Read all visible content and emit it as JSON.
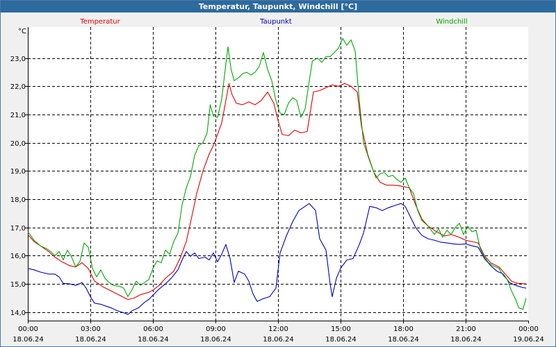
{
  "window": {
    "title": "Temperatur, Taupunkt, Windchill [°C]"
  },
  "chart_data": {
    "type": "line",
    "title": "Temperatur, Taupunkt, Windchill [°C]",
    "ylabel": "°C",
    "xlabel": "",
    "ylim": [
      13.7,
      24.1
    ],
    "xlim": [
      0,
      24
    ],
    "grid": true,
    "yticks": [
      14.0,
      15.0,
      16.0,
      17.0,
      18.0,
      19.0,
      20.0,
      21.0,
      22.0,
      23.0
    ],
    "ytick_labels": [
      "14,0",
      "15,0",
      "16,0",
      "17,0",
      "18,0",
      "19,0",
      "20,0",
      "21,0",
      "22,0",
      "23,0"
    ],
    "xticks": [
      {
        "x": 0,
        "time": "00:00",
        "date": "18.06.24"
      },
      {
        "x": 3,
        "time": "03:00",
        "date": "18.06.24"
      },
      {
        "x": 6,
        "time": "06:00",
        "date": "18.06.24"
      },
      {
        "x": 9,
        "time": "09:00",
        "date": "18.06.24"
      },
      {
        "x": 12,
        "time": "12:00",
        "date": "18.06.24"
      },
      {
        "x": 15,
        "time": "15:00",
        "date": "18.06.24"
      },
      {
        "x": 18,
        "time": "18:00",
        "date": "18.06.24"
      },
      {
        "x": 21,
        "time": "21:00",
        "date": "18.06.24"
      },
      {
        "x": 24,
        "time": "00:00",
        "date": "19.06.24"
      }
    ],
    "legend_position": "top",
    "series": [
      {
        "name": "Temperatur",
        "color": "#e00000",
        "points": [
          [
            0,
            16.75
          ],
          [
            0.3,
            16.5
          ],
          [
            0.7,
            16.3
          ],
          [
            1.0,
            16.15
          ],
          [
            1.3,
            15.95
          ],
          [
            1.6,
            15.8
          ],
          [
            2.0,
            15.65
          ],
          [
            2.3,
            15.6
          ],
          [
            2.6,
            15.75
          ],
          [
            2.9,
            15.55
          ],
          [
            3.2,
            15.1
          ],
          [
            3.6,
            14.9
          ],
          [
            4.0,
            14.75
          ],
          [
            4.4,
            14.6
          ],
          [
            4.8,
            14.45
          ],
          [
            5.1,
            14.5
          ],
          [
            5.4,
            14.62
          ],
          [
            5.8,
            14.7
          ],
          [
            6.0,
            14.78
          ],
          [
            6.3,
            14.95
          ],
          [
            6.6,
            15.2
          ],
          [
            7.0,
            15.45
          ],
          [
            7.3,
            15.9
          ],
          [
            7.6,
            16.5
          ],
          [
            7.9,
            17.5
          ],
          [
            8.1,
            18.2
          ],
          [
            8.4,
            19.0
          ],
          [
            8.7,
            19.6
          ],
          [
            8.9,
            19.9
          ],
          [
            9.1,
            20.3
          ],
          [
            9.3,
            20.7
          ],
          [
            9.5,
            21.5
          ],
          [
            9.65,
            22.1
          ],
          [
            9.8,
            21.7
          ],
          [
            10.0,
            21.4
          ],
          [
            10.3,
            21.35
          ],
          [
            10.6,
            21.45
          ],
          [
            10.9,
            21.35
          ],
          [
            11.2,
            21.5
          ],
          [
            11.5,
            21.8
          ],
          [
            11.8,
            21.4
          ],
          [
            12.0,
            20.8
          ],
          [
            12.2,
            20.3
          ],
          [
            12.5,
            20.25
          ],
          [
            12.8,
            20.45
          ],
          [
            13.1,
            20.35
          ],
          [
            13.4,
            20.4
          ],
          [
            13.7,
            21.8
          ],
          [
            14.0,
            21.85
          ],
          [
            14.3,
            21.95
          ],
          [
            14.6,
            22.05
          ],
          [
            14.9,
            22.0
          ],
          [
            15.2,
            22.1
          ],
          [
            15.5,
            22.0
          ],
          [
            15.8,
            21.8
          ],
          [
            16.0,
            20.6
          ],
          [
            16.3,
            19.6
          ],
          [
            16.6,
            18.95
          ],
          [
            16.9,
            18.6
          ],
          [
            17.2,
            18.5
          ],
          [
            17.5,
            18.5
          ],
          [
            17.8,
            18.48
          ],
          [
            18.0,
            18.45
          ],
          [
            18.3,
            18.4
          ],
          [
            18.6,
            17.8
          ],
          [
            18.9,
            17.3
          ],
          [
            19.2,
            17.05
          ],
          [
            19.6,
            16.85
          ],
          [
            20.0,
            16.7
          ],
          [
            20.3,
            16.75
          ],
          [
            20.6,
            16.68
          ],
          [
            21.0,
            16.55
          ],
          [
            21.3,
            16.5
          ],
          [
            21.6,
            16.45
          ],
          [
            21.9,
            16.0
          ],
          [
            22.2,
            15.75
          ],
          [
            22.6,
            15.6
          ],
          [
            22.9,
            15.35
          ],
          [
            23.2,
            15.1
          ],
          [
            23.5,
            15.02
          ],
          [
            23.9,
            15.0
          ]
        ]
      },
      {
        "name": "Taupunkt",
        "color": "#0000c0",
        "points": [
          [
            0,
            15.55
          ],
          [
            0.3,
            15.5
          ],
          [
            0.6,
            15.42
          ],
          [
            1.0,
            15.35
          ],
          [
            1.3,
            15.35
          ],
          [
            1.5,
            15.25
          ],
          [
            1.7,
            15.02
          ],
          [
            2.0,
            15.0
          ],
          [
            2.3,
            14.95
          ],
          [
            2.6,
            15.05
          ],
          [
            2.8,
            14.85
          ],
          [
            3.0,
            14.55
          ],
          [
            3.2,
            14.32
          ],
          [
            3.5,
            14.28
          ],
          [
            3.8,
            14.2
          ],
          [
            4.0,
            14.15
          ],
          [
            4.3,
            14.05
          ],
          [
            4.6,
            13.98
          ],
          [
            4.8,
            13.92
          ],
          [
            5.0,
            14.05
          ],
          [
            5.3,
            14.15
          ],
          [
            5.6,
            14.35
          ],
          [
            5.8,
            14.45
          ],
          [
            6.0,
            14.6
          ],
          [
            6.3,
            14.82
          ],
          [
            6.6,
            15.0
          ],
          [
            6.9,
            15.22
          ],
          [
            7.2,
            15.5
          ],
          [
            7.4,
            15.85
          ],
          [
            7.6,
            16.15
          ],
          [
            7.8,
            15.98
          ],
          [
            8.0,
            16.1
          ],
          [
            8.2,
            15.9
          ],
          [
            8.5,
            15.95
          ],
          [
            8.7,
            15.85
          ],
          [
            8.9,
            16.1
          ],
          [
            9.1,
            15.78
          ],
          [
            9.3,
            16.05
          ],
          [
            9.5,
            16.4
          ],
          [
            9.7,
            15.9
          ],
          [
            9.9,
            15.05
          ],
          [
            10.1,
            15.45
          ],
          [
            10.4,
            15.35
          ],
          [
            10.6,
            15.1
          ],
          [
            10.8,
            14.65
          ],
          [
            11.0,
            14.38
          ],
          [
            11.3,
            14.48
          ],
          [
            11.6,
            14.55
          ],
          [
            11.9,
            14.85
          ],
          [
            12.1,
            16.1
          ],
          [
            12.4,
            16.7
          ],
          [
            12.7,
            17.2
          ],
          [
            13.0,
            17.6
          ],
          [
            13.2,
            17.7
          ],
          [
            13.5,
            17.85
          ],
          [
            13.8,
            17.6
          ],
          [
            14.0,
            16.6
          ],
          [
            14.3,
            16.2
          ],
          [
            14.5,
            15.0
          ],
          [
            14.6,
            14.55
          ],
          [
            14.8,
            15.2
          ],
          [
            15.0,
            15.55
          ],
          [
            15.3,
            15.85
          ],
          [
            15.6,
            15.9
          ],
          [
            15.9,
            16.4
          ],
          [
            16.1,
            16.8
          ],
          [
            16.4,
            17.75
          ],
          [
            16.7,
            17.7
          ],
          [
            17.0,
            17.6
          ],
          [
            17.3,
            17.7
          ],
          [
            17.6,
            17.78
          ],
          [
            17.9,
            17.85
          ],
          [
            18.1,
            17.75
          ],
          [
            18.3,
            17.45
          ],
          [
            18.6,
            17.0
          ],
          [
            18.9,
            16.72
          ],
          [
            19.2,
            16.6
          ],
          [
            19.5,
            16.55
          ],
          [
            19.8,
            16.48
          ],
          [
            20.1,
            16.45
          ],
          [
            20.4,
            16.42
          ],
          [
            20.7,
            16.4
          ],
          [
            21.0,
            16.42
          ],
          [
            21.3,
            16.35
          ],
          [
            21.6,
            16.3
          ],
          [
            21.9,
            15.9
          ],
          [
            22.2,
            15.65
          ],
          [
            22.5,
            15.45
          ],
          [
            22.8,
            15.35
          ],
          [
            23.1,
            15.05
          ],
          [
            23.4,
            14.95
          ],
          [
            23.7,
            14.88
          ],
          [
            23.9,
            14.85
          ]
        ]
      },
      {
        "name": "Windchill",
        "color": "#00a800",
        "points": [
          [
            0,
            16.85
          ],
          [
            0.3,
            16.55
          ],
          [
            0.6,
            16.35
          ],
          [
            0.9,
            16.25
          ],
          [
            1.1,
            16.15
          ],
          [
            1.3,
            16.0
          ],
          [
            1.5,
            16.15
          ],
          [
            1.7,
            15.85
          ],
          [
            1.9,
            16.2
          ],
          [
            2.1,
            15.95
          ],
          [
            2.3,
            15.6
          ],
          [
            2.5,
            15.8
          ],
          [
            2.7,
            16.45
          ],
          [
            2.9,
            16.3
          ],
          [
            3.1,
            15.55
          ],
          [
            3.3,
            15.25
          ],
          [
            3.5,
            15.5
          ],
          [
            3.7,
            15.2
          ],
          [
            3.9,
            15.05
          ],
          [
            4.1,
            14.95
          ],
          [
            4.4,
            14.92
          ],
          [
            4.6,
            14.85
          ],
          [
            4.8,
            14.55
          ],
          [
            5.0,
            14.8
          ],
          [
            5.2,
            15.1
          ],
          [
            5.4,
            14.95
          ],
          [
            5.6,
            15.05
          ],
          [
            5.8,
            15.15
          ],
          [
            6.0,
            15.55
          ],
          [
            6.2,
            15.82
          ],
          [
            6.4,
            15.75
          ],
          [
            6.6,
            16.2
          ],
          [
            6.8,
            16.05
          ],
          [
            7.0,
            16.5
          ],
          [
            7.2,
            16.8
          ],
          [
            7.4,
            17.8
          ],
          [
            7.6,
            18.4
          ],
          [
            7.8,
            18.8
          ],
          [
            8.0,
            19.55
          ],
          [
            8.2,
            19.9
          ],
          [
            8.4,
            20.0
          ],
          [
            8.6,
            20.35
          ],
          [
            8.75,
            21.35
          ],
          [
            8.9,
            20.95
          ],
          [
            9.1,
            20.9
          ],
          [
            9.3,
            21.55
          ],
          [
            9.5,
            22.8
          ],
          [
            9.6,
            23.4
          ],
          [
            9.75,
            22.6
          ],
          [
            9.9,
            22.2
          ],
          [
            10.1,
            22.3
          ],
          [
            10.3,
            22.45
          ],
          [
            10.5,
            22.5
          ],
          [
            10.7,
            22.4
          ],
          [
            10.9,
            22.5
          ],
          [
            11.1,
            22.7
          ],
          [
            11.3,
            23.2
          ],
          [
            11.5,
            22.6
          ],
          [
            11.7,
            22.2
          ],
          [
            11.9,
            21.5
          ],
          [
            12.1,
            21.05
          ],
          [
            12.3,
            21.0
          ],
          [
            12.5,
            21.4
          ],
          [
            12.7,
            21.6
          ],
          [
            12.9,
            21.5
          ],
          [
            13.1,
            20.9
          ],
          [
            13.3,
            21.2
          ],
          [
            13.5,
            22.2
          ],
          [
            13.65,
            22.9
          ],
          [
            13.9,
            23.0
          ],
          [
            14.1,
            22.85
          ],
          [
            14.3,
            23.05
          ],
          [
            14.5,
            23.05
          ],
          [
            14.7,
            23.2
          ],
          [
            14.9,
            23.35
          ],
          [
            15.1,
            23.7
          ],
          [
            15.3,
            23.45
          ],
          [
            15.5,
            23.65
          ],
          [
            15.7,
            23.25
          ],
          [
            15.9,
            21.5
          ],
          [
            16.1,
            20.0
          ],
          [
            16.4,
            19.35
          ],
          [
            16.7,
            18.75
          ],
          [
            16.9,
            18.9
          ],
          [
            17.1,
            18.95
          ],
          [
            17.3,
            18.8
          ],
          [
            17.5,
            18.85
          ],
          [
            17.7,
            18.7
          ],
          [
            17.9,
            18.6
          ],
          [
            18.1,
            18.75
          ],
          [
            18.3,
            18.4
          ],
          [
            18.5,
            18.2
          ],
          [
            18.7,
            17.6
          ],
          [
            18.9,
            17.25
          ],
          [
            19.2,
            17.05
          ],
          [
            19.5,
            16.75
          ],
          [
            19.7,
            16.95
          ],
          [
            19.9,
            16.65
          ],
          [
            20.1,
            16.9
          ],
          [
            20.3,
            16.75
          ],
          [
            20.5,
            17.0
          ],
          [
            20.7,
            17.15
          ],
          [
            20.9,
            16.75
          ],
          [
            21.1,
            17.05
          ],
          [
            21.3,
            16.85
          ],
          [
            21.5,
            16.9
          ],
          [
            21.7,
            16.25
          ],
          [
            21.9,
            15.95
          ],
          [
            22.1,
            15.75
          ],
          [
            22.3,
            15.65
          ],
          [
            22.6,
            15.55
          ],
          [
            22.8,
            15.3
          ],
          [
            23.0,
            15.15
          ],
          [
            23.2,
            14.75
          ],
          [
            23.4,
            14.45
          ],
          [
            23.55,
            14.15
          ],
          [
            23.75,
            14.1
          ],
          [
            23.9,
            14.5
          ]
        ]
      }
    ]
  }
}
